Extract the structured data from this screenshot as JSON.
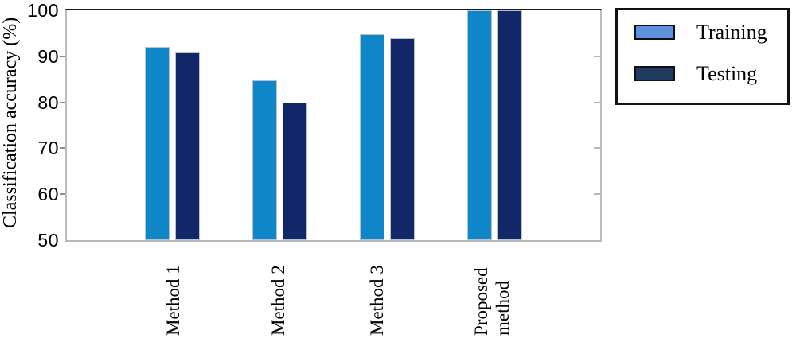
{
  "chart_data": {
    "type": "bar",
    "title": "",
    "ylabel": "Classification accuracy (%)",
    "xlabel": "",
    "ylim": [
      50,
      100
    ],
    "yticks": [
      100,
      90,
      80,
      70,
      60,
      50
    ],
    "grid": false,
    "legend_position": "outside-top-right",
    "categories": [
      "Method 1",
      "Method 2",
      "Method 3",
      "Proposed\nmethod"
    ],
    "series": [
      {
        "name": "Training",
        "values": [
          92,
          84.8,
          94.8,
          100
        ],
        "bar_color": "#0F86C8",
        "legend_color": "#5E92DB"
      },
      {
        "name": "Testing",
        "values": [
          90.8,
          80,
          94,
          100
        ],
        "bar_color": "#112768",
        "legend_color": "#213A5F"
      }
    ]
  },
  "colors": {
    "background": "#ffffff",
    "plot_border_top": "#1a1a1a",
    "plot_border_sides": "#bcbcbc",
    "left_tick": "#8a8a8a",
    "right_tick": "#b5b5b5",
    "text": "#000000",
    "legend_border": "#111111"
  }
}
